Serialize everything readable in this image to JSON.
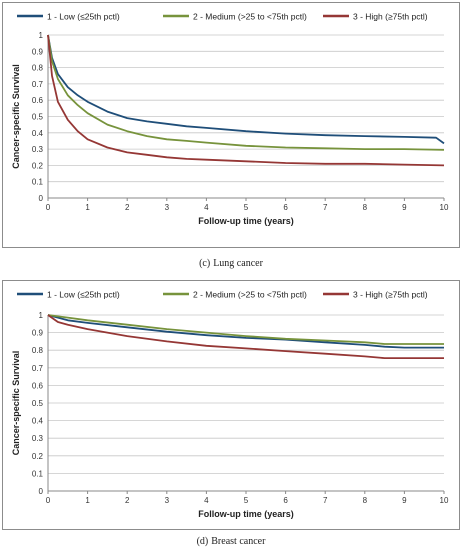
{
  "figure": {
    "caption_c_label": "(c)",
    "caption_c_text": "Lung cancer",
    "caption_d_label": "(d)",
    "caption_d_text": "Breast cancer"
  },
  "chart_data": [
    {
      "type": "line",
      "title": "",
      "xlabel": "Follow-up time (years)",
      "ylabel": "Cancer-specific Survival",
      "xlim": [
        0,
        10
      ],
      "ylim": [
        0,
        1
      ],
      "xticks": [
        "0",
        "1",
        "2",
        "3",
        "4",
        "5",
        "6",
        "7",
        "8",
        "9",
        "10"
      ],
      "yticks": [
        "0",
        "0.1",
        "0.2",
        "0.3",
        "0.4",
        "0.5",
        "0.6",
        "0.7",
        "0.8",
        "0.9",
        "1"
      ],
      "grid": true,
      "legend_position": "top",
      "series": [
        {
          "name": "1 - Low (≤25th pctl)",
          "color": "#1f4e79",
          "x": [
            0,
            0.1,
            0.25,
            0.5,
            0.75,
            1,
            1.5,
            2,
            2.5,
            3,
            3.5,
            4,
            5,
            6,
            7,
            8,
            9,
            9.8,
            10
          ],
          "y": [
            1,
            0.86,
            0.76,
            0.68,
            0.63,
            0.59,
            0.53,
            0.49,
            0.47,
            0.455,
            0.44,
            0.43,
            0.41,
            0.395,
            0.385,
            0.38,
            0.375,
            0.37,
            0.335
          ]
        },
        {
          "name": "2 - Medium (>25 to <75th pctl)",
          "color": "#77933c",
          "x": [
            0,
            0.1,
            0.25,
            0.5,
            0.75,
            1,
            1.5,
            2,
            2.5,
            3,
            3.5,
            4,
            5,
            6,
            7,
            8,
            9,
            10
          ],
          "y": [
            1,
            0.84,
            0.73,
            0.63,
            0.57,
            0.52,
            0.45,
            0.41,
            0.38,
            0.36,
            0.35,
            0.34,
            0.32,
            0.31,
            0.305,
            0.3,
            0.3,
            0.295
          ]
        },
        {
          "name": "3 - High (≥75th pctl)",
          "color": "#953735",
          "x": [
            0,
            0.1,
            0.25,
            0.5,
            0.75,
            1,
            1.5,
            2,
            2.5,
            3,
            3.5,
            4,
            5,
            6,
            7,
            8,
            9,
            10
          ],
          "y": [
            1,
            0.75,
            0.59,
            0.48,
            0.41,
            0.36,
            0.31,
            0.28,
            0.265,
            0.25,
            0.24,
            0.235,
            0.225,
            0.215,
            0.21,
            0.21,
            0.205,
            0.2
          ]
        }
      ]
    },
    {
      "type": "line",
      "title": "",
      "xlabel": "Follow-up time (years)",
      "ylabel": "Cancer-specific Survival",
      "xlim": [
        0,
        10
      ],
      "ylim": [
        0,
        1
      ],
      "xticks": [
        "0",
        "1",
        "2",
        "3",
        "4",
        "5",
        "6",
        "7",
        "8",
        "9",
        "10"
      ],
      "yticks": [
        "0",
        "0.1",
        "0.2",
        "0.3",
        "0.4",
        "0.5",
        "0.6",
        "0.7",
        "0.8",
        "0.9",
        "1"
      ],
      "grid": true,
      "legend_position": "top",
      "series": [
        {
          "name": "1 - Low (≤25th pctl)",
          "color": "#1f4e79",
          "x": [
            0,
            0.5,
            1,
            2,
            3,
            4,
            5,
            6,
            7,
            8,
            8.5,
            9,
            10
          ],
          "y": [
            1,
            0.97,
            0.955,
            0.93,
            0.905,
            0.885,
            0.87,
            0.86,
            0.845,
            0.83,
            0.82,
            0.815,
            0.815
          ]
        },
        {
          "name": "2 - Medium (>25 to <75th pctl)",
          "color": "#77933c",
          "x": [
            0,
            0.5,
            1,
            2,
            3,
            4,
            5,
            6,
            7,
            8,
            8.5,
            9,
            10
          ],
          "y": [
            1,
            0.985,
            0.97,
            0.945,
            0.92,
            0.9,
            0.88,
            0.865,
            0.855,
            0.845,
            0.835,
            0.835,
            0.835
          ]
        },
        {
          "name": "3 - High (≥75th pctl)",
          "color": "#953735",
          "x": [
            0,
            0.25,
            0.5,
            1,
            2,
            3,
            4,
            5,
            6,
            7,
            8,
            8.5,
            9,
            10
          ],
          "y": [
            1,
            0.96,
            0.945,
            0.92,
            0.88,
            0.85,
            0.825,
            0.81,
            0.795,
            0.78,
            0.765,
            0.755,
            0.755,
            0.755
          ]
        }
      ]
    }
  ]
}
